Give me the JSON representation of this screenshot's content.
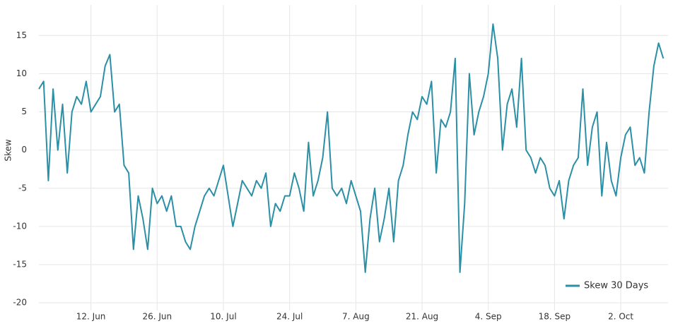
{
  "chart_data": {
    "type": "line",
    "y_label": "Skew",
    "x": [
      "06-01",
      "06-02",
      "06-03",
      "06-04",
      "06-05",
      "06-06",
      "06-07",
      "06-08",
      "06-09",
      "06-10",
      "06-11",
      "06-12",
      "06-13",
      "06-14",
      "06-15",
      "06-16",
      "06-17",
      "06-18",
      "06-19",
      "06-20",
      "06-21",
      "06-22",
      "06-23",
      "06-24",
      "06-25",
      "06-26",
      "06-27",
      "06-28",
      "06-29",
      "06-30",
      "07-01",
      "07-02",
      "07-03",
      "07-04",
      "07-05",
      "07-06",
      "07-07",
      "07-08",
      "07-09",
      "07-10",
      "07-11",
      "07-12",
      "07-13",
      "07-14",
      "07-15",
      "07-16",
      "07-17",
      "07-18",
      "07-19",
      "07-20",
      "07-21",
      "07-22",
      "07-23",
      "07-24",
      "07-25",
      "07-26",
      "07-27",
      "07-28",
      "07-29",
      "07-30",
      "07-31",
      "08-01",
      "08-02",
      "08-03",
      "08-04",
      "08-05",
      "08-06",
      "08-07",
      "08-08",
      "08-09",
      "08-10",
      "08-11",
      "08-12",
      "08-13",
      "08-14",
      "08-15",
      "08-16",
      "08-17",
      "08-18",
      "08-19",
      "08-20",
      "08-21",
      "08-22",
      "08-23",
      "08-24",
      "08-25",
      "08-26",
      "08-27",
      "08-28",
      "08-29",
      "08-30",
      "08-31",
      "09-01",
      "09-02",
      "09-03",
      "09-04",
      "09-05",
      "09-06",
      "09-07",
      "09-08",
      "09-09",
      "09-10",
      "09-11",
      "09-12",
      "09-13",
      "09-14",
      "09-15",
      "09-16",
      "09-17",
      "09-18",
      "09-19",
      "09-20",
      "09-21",
      "09-22",
      "09-23",
      "09-24",
      "09-25",
      "09-26",
      "09-27",
      "09-28",
      "09-29",
      "09-30",
      "10-01",
      "10-02",
      "10-03",
      "10-04",
      "10-05",
      "10-06",
      "10-07",
      "10-08",
      "10-09",
      "10-10",
      "10-11"
    ],
    "series": [
      {
        "name": "Skew 30 Days",
        "color": "#2b8fa6",
        "values": [
          8,
          9,
          -4,
          8,
          0,
          6,
          -3,
          5,
          7,
          6,
          9,
          5,
          6,
          7,
          11,
          12.5,
          5,
          6,
          -2,
          -3,
          -13,
          -6,
          -9,
          -13,
          -5,
          -7,
          -6,
          -8,
          -6,
          -10,
          -10,
          -12,
          -13,
          -10,
          -8,
          -6,
          -5,
          -6,
          -4,
          -2,
          -6,
          -10,
          -7,
          -4,
          -5,
          -6,
          -4,
          -5,
          -3,
          -10,
          -7,
          -8,
          -6,
          -6,
          -3,
          -5,
          -8,
          1,
          -6,
          -4,
          -1,
          5,
          -5,
          -6,
          -5,
          -7,
          -4,
          -6,
          -8,
          -16,
          -9,
          -5,
          -12,
          -9,
          -5,
          -12,
          -4,
          -2,
          2,
          5,
          4,
          7,
          6,
          9,
          -3,
          4,
          3,
          5,
          12,
          -16,
          -7,
          10,
          2,
          5,
          7,
          10,
          16.5,
          12,
          0,
          6,
          8,
          3,
          12,
          0,
          -1,
          -3,
          -1,
          -2,
          -5,
          -6,
          -4,
          -9,
          -4,
          -2,
          -1,
          8,
          -2,
          3,
          5,
          -6,
          1,
          -4,
          -6,
          -1,
          2,
          3,
          -2,
          -1,
          -3,
          5,
          11,
          14,
          12
        ]
      }
    ],
    "xlim": [
      "06-01",
      "10-12"
    ],
    "xticks": [
      {
        "value": "06-12",
        "label": "12. Jun"
      },
      {
        "value": "06-26",
        "label": "26. Jun"
      },
      {
        "value": "07-10",
        "label": "10. Jul"
      },
      {
        "value": "07-24",
        "label": "24. Jul"
      },
      {
        "value": "08-07",
        "label": "7. Aug"
      },
      {
        "value": "08-21",
        "label": "21. Aug"
      },
      {
        "value": "09-04",
        "label": "4. Sep"
      },
      {
        "value": "09-18",
        "label": "18. Sep"
      },
      {
        "value": "10-02",
        "label": "2. Oct"
      }
    ],
    "ylim": [
      -21,
      19
    ],
    "yticks": [
      -20,
      -15,
      -10,
      -5,
      0,
      5,
      10,
      15
    ],
    "grid": true,
    "legend": "bottom-right"
  }
}
